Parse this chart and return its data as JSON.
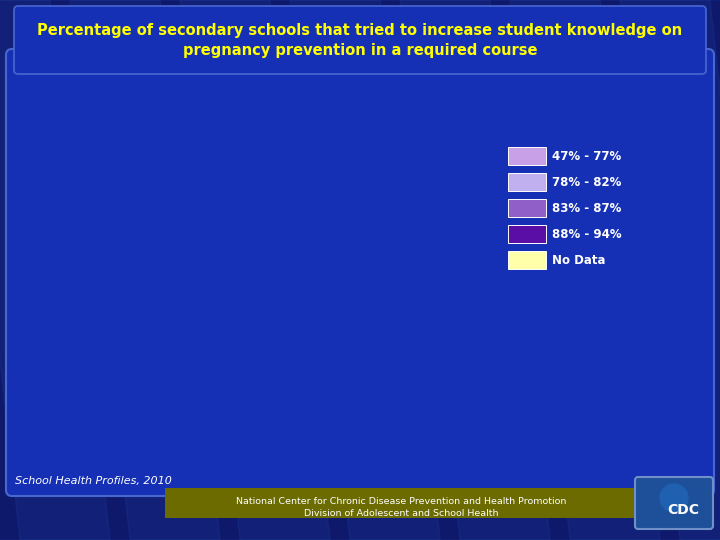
{
  "title_line1": "Percentage of secondary schools that tried to increase student knowledge on",
  "title_line2": "pregnancy prevention in a required course",
  "title_color": "#FFFF00",
  "bg_outer": "#0A1060",
  "bg_panel": "#1428A0",
  "legend_colors": [
    "#C8A0E8",
    "#C0B0F0",
    "#9060C8",
    "#5B0EA6",
    "#FFFFAA"
  ],
  "legend_labels": [
    "47% - 77%",
    "78% - 82%",
    "83% - 87%",
    "88% - 94%",
    "No Data"
  ],
  "state_colors": {
    "AL": "#9060C8",
    "AK": "#C8A0E8",
    "AZ": "#C0B0F0",
    "AR": "#5B0EA6",
    "CA": "#C0B0F0",
    "CO": "#C0B0F0",
    "CT": "#9060C8",
    "DE": "#9060C8",
    "FL": "#C0B0F0",
    "GA": "#5B0EA6",
    "HI": "#5B0EA6",
    "ID": "#C0B0F0",
    "IL": "#FFFFAA",
    "IN": "#5B0EA6",
    "IA": "#C0B0F0",
    "KS": "#9060C8",
    "KY": "#9060C8",
    "LA": "#5B0EA6",
    "ME": "#9060C8",
    "MD": "#5B0EA6",
    "MA": "#9060C8",
    "MI": "#C8A0E8",
    "MN": "#9060C8",
    "MS": "#9060C8",
    "MO": "#9060C8",
    "MT": "#C0B0F0",
    "NE": "#9060C8",
    "NV": "#5B0EA6",
    "NH": "#C8A0E8",
    "NJ": "#C8A0E8",
    "NM": "#C0B0F0",
    "NY": "#5B0EA6",
    "NC": "#C0B0F0",
    "ND": "#C0B0F0",
    "OH": "#5B0EA6",
    "OK": "#5B0EA6",
    "OR": "#C0B0F0",
    "PA": "#C8A0E8",
    "RI": "#5B0EA6",
    "SC": "#5B0EA6",
    "SD": "#C0B0F0",
    "TN": "#C8A0E8",
    "TX": "#C0B0F0",
    "UT": "#C0B0F0",
    "VT": "#9060C8",
    "VA": "#C8A0E8",
    "WA": "#5B0EA6",
    "WV": "#5B0EA6",
    "WI": "#5B0EA6",
    "WY": "#C0B0F0"
  },
  "default_state_color": "#C0B0F0",
  "footer_text": "School Health Profiles, 2010",
  "banner_text1": "National Center for Chronic Disease Prevention and Health Promotion",
  "banner_text2": "Division of Adolescent and School Health",
  "banner_bg": "#6B6B00",
  "map_bg": "#1428A0"
}
